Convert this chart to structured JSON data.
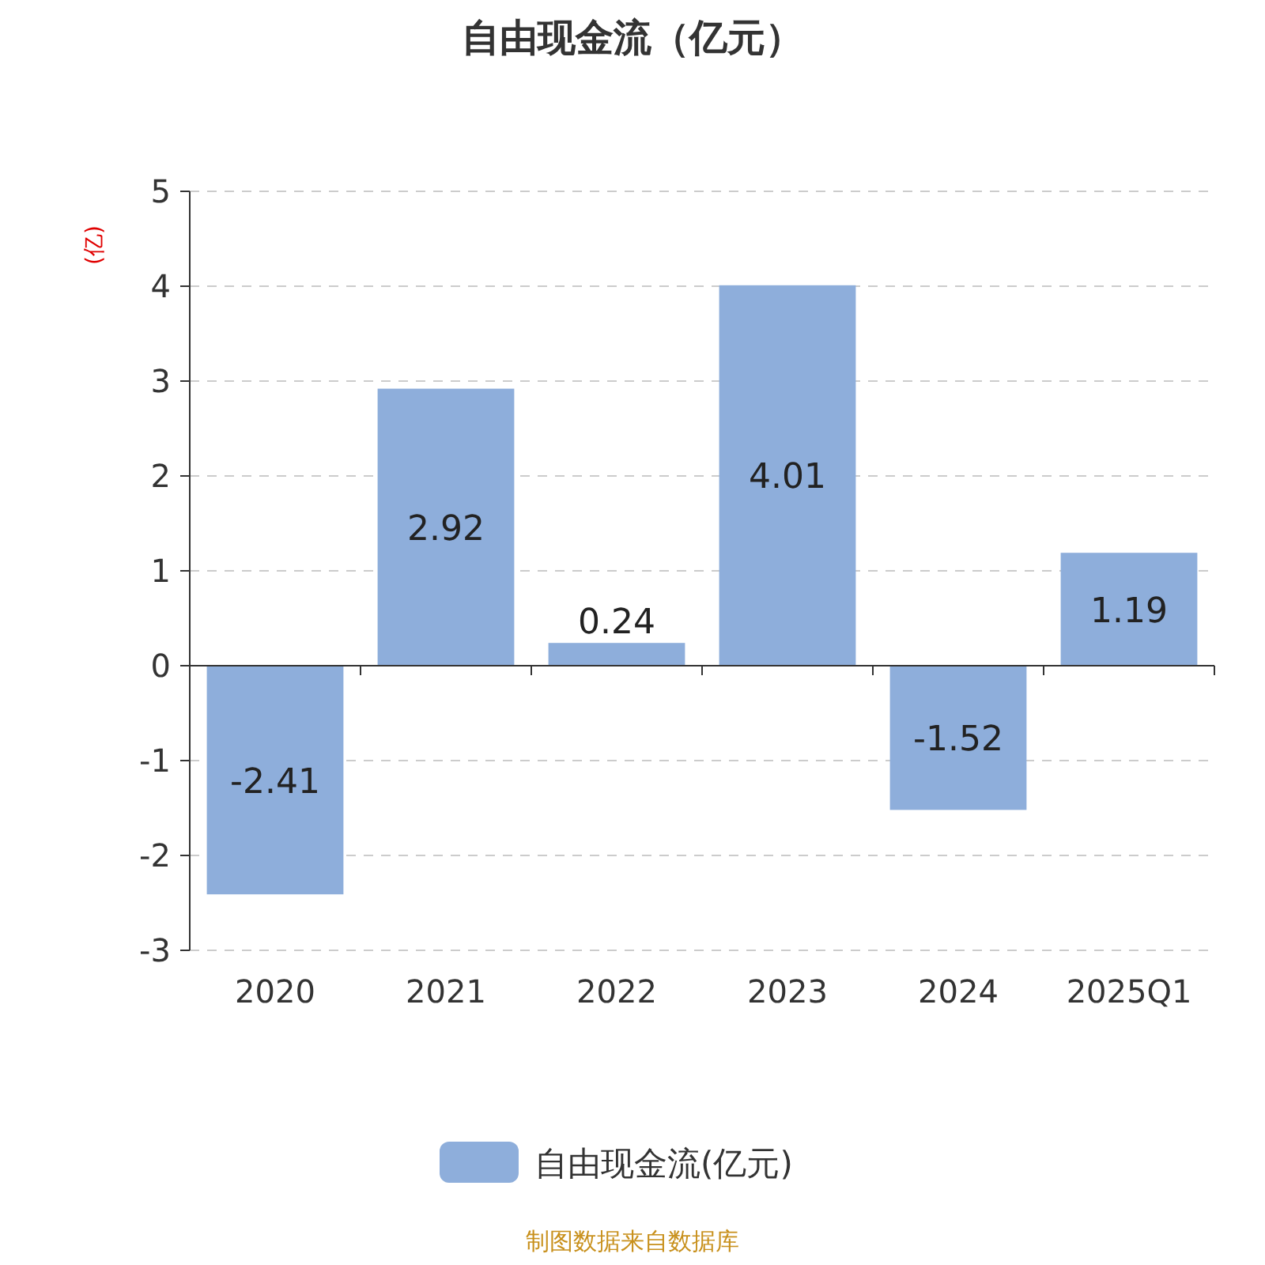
{
  "chart_data": {
    "type": "bar",
    "title": "自由现金流（亿元）",
    "ylabel": "(亿)",
    "categories": [
      "2020",
      "2021",
      "2022",
      "2023",
      "2024",
      "2025Q1"
    ],
    "series": [
      {
        "name": "自由现金流(亿元)",
        "color": "#8eaedb",
        "values": [
          -2.41,
          2.92,
          0.24,
          4.01,
          -1.52,
          1.19
        ]
      }
    ],
    "ylim": [
      -3,
      5
    ],
    "yticks": [
      -3,
      -2,
      -1,
      0,
      1,
      2,
      3,
      4,
      5
    ],
    "grid": "y",
    "legend": "bottom",
    "data_labels": true,
    "annotations": [
      "制图数据来自数据库"
    ]
  }
}
